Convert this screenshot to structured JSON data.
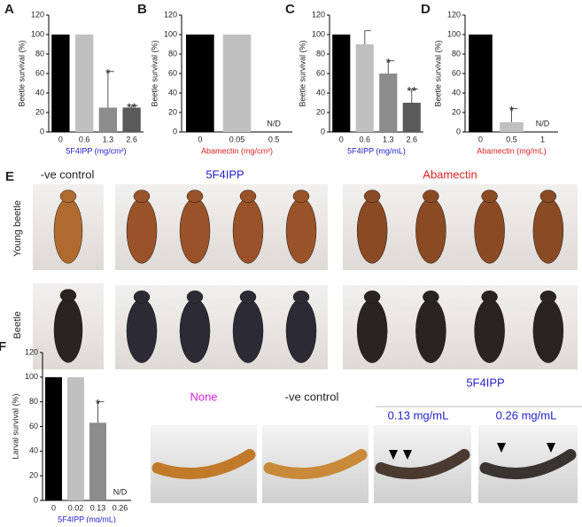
{
  "chart_data": [
    {
      "type": "bar",
      "panel": "A",
      "ylabel": "Beetle survival (%)",
      "xlabel": "5F4IPP (mg/cm²)",
      "xlabel_color": "#2222cc",
      "categories": [
        "0",
        "0.6",
        "1.3",
        "2.6"
      ],
      "values": [
        100,
        100,
        25,
        25
      ],
      "errors": [
        null,
        null,
        37,
        2
      ],
      "annotations": [
        null,
        null,
        "*",
        "**"
      ],
      "colors": [
        "#000000",
        "#c0c0c0",
        "#8c8c8c",
        "#5a5a5a"
      ],
      "ylim": [
        0,
        120
      ],
      "yticks": [
        0,
        20,
        40,
        60,
        80,
        100,
        120
      ]
    },
    {
      "type": "bar",
      "panel": "B",
      "ylabel": "Beetle survival (%)",
      "xlabel": "Abamectin (mg/cm²)",
      "xlabel_color": "#dd2222",
      "categories": [
        "0",
        "0.05",
        "0.5"
      ],
      "values": [
        100,
        100,
        0
      ],
      "errors": [
        null,
        null,
        null
      ],
      "annotations": [
        null,
        null,
        "N/D"
      ],
      "colors": [
        "#000000",
        "#c0c0c0",
        "#8c8c8c"
      ],
      "ylim": [
        0,
        120
      ],
      "yticks": [
        0,
        20,
        40,
        60,
        80,
        100,
        120
      ]
    },
    {
      "type": "bar",
      "panel": "C",
      "ylabel": "Beetle survival (%)",
      "xlabel": "5F4IPP (mg/mL)",
      "xlabel_color": "#2222cc",
      "categories": [
        "0",
        "0.6",
        "1.3",
        "2.6"
      ],
      "values": [
        100,
        90,
        60,
        30
      ],
      "errors": [
        null,
        14,
        13,
        14
      ],
      "annotations": [
        null,
        null,
        "*",
        "**"
      ],
      "colors": [
        "#000000",
        "#c0c0c0",
        "#8c8c8c",
        "#5a5a5a"
      ],
      "ylim": [
        0,
        120
      ],
      "yticks": [
        0,
        20,
        40,
        60,
        80,
        100,
        120
      ]
    },
    {
      "type": "bar",
      "panel": "D",
      "ylabel": "Beetle survival (%)",
      "xlabel": "Abamectin (mg/mL)",
      "xlabel_color": "#dd2222",
      "categories": [
        "0",
        "0.5",
        "1"
      ],
      "values": [
        100,
        10,
        0
      ],
      "errors": [
        null,
        14,
        null
      ],
      "annotations": [
        null,
        "*",
        "N/D"
      ],
      "colors": [
        "#000000",
        "#c0c0c0",
        "#8c8c8c"
      ],
      "ylim": [
        0,
        120
      ],
      "yticks": [
        0,
        20,
        40,
        60,
        80,
        100,
        120
      ]
    },
    {
      "type": "bar",
      "panel": "F",
      "ylabel": "Larval survival (%)",
      "xlabel": "5F4IPP (mg/mL)",
      "xlabel_color": "#2222cc",
      "categories": [
        "0",
        "0.02",
        "0.13",
        "0.26"
      ],
      "values": [
        100,
        100,
        63,
        0
      ],
      "errors": [
        null,
        null,
        17,
        null
      ],
      "annotations": [
        null,
        null,
        "*",
        "N/D"
      ],
      "colors": [
        "#000000",
        "#c0c0c0",
        "#8c8c8c",
        "#5a5a5a"
      ],
      "ylim": [
        0,
        120
      ],
      "yticks": [
        0,
        20,
        40,
        60,
        80,
        100,
        120
      ]
    }
  ],
  "panel_E": {
    "label": "E",
    "column_titles": [
      "-ve control",
      "5F4IPP",
      "Abamectin"
    ],
    "row_titles": [
      "Young beetle",
      "Beetle"
    ]
  },
  "panel_F_photos": {
    "captions": [
      "None",
      "-ve control"
    ],
    "group_title": "5F4IPP",
    "group_captions": [
      "0.13 mg/mL",
      "0.26 mg/mL"
    ]
  }
}
